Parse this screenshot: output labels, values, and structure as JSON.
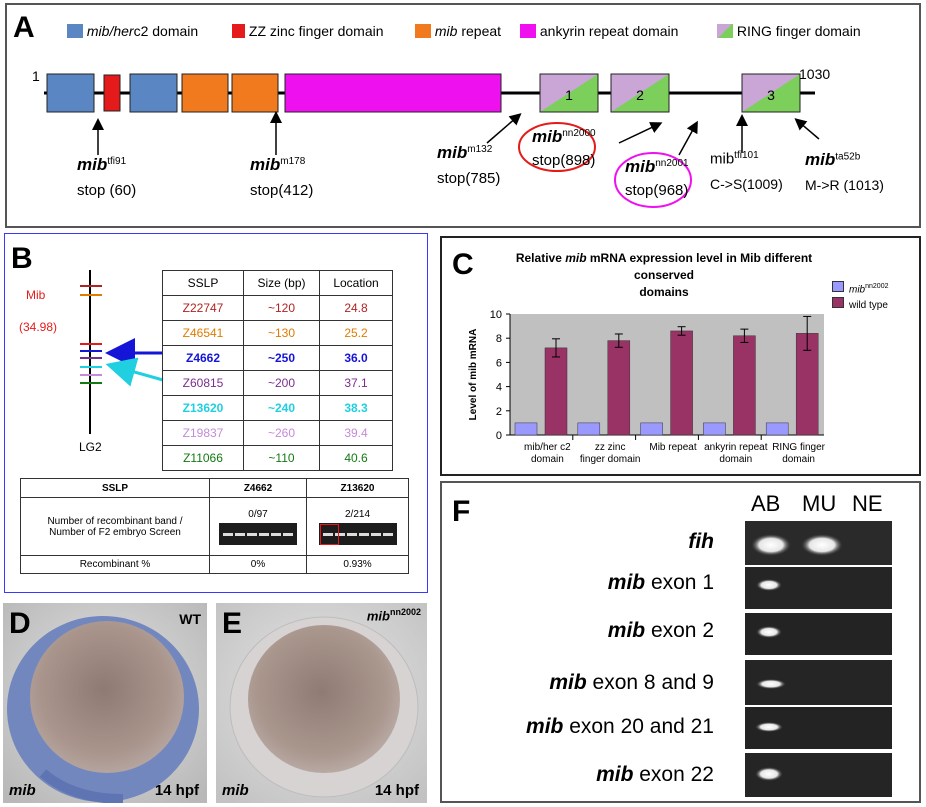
{
  "panel_a": {
    "letter": "A",
    "legend": [
      {
        "italic": "mib/her",
        "text": "c2 domain",
        "color": "#5b86c4"
      },
      {
        "italic": "",
        "text": "ZZ zinc finger domain",
        "color": "#e51b1b"
      },
      {
        "italic": "mib",
        "text": " repeat",
        "color": "#f07a1d"
      },
      {
        "italic": "",
        "text": "ankyrin repeat domain",
        "color": "#ee10ee"
      },
      {
        "italic": "",
        "text": "RING finger domain",
        "color": "#b999c6"
      }
    ],
    "start": "1",
    "end": "1030",
    "ring_numbers": [
      "1",
      "2",
      "3"
    ],
    "mutations": [
      {
        "base": "mib",
        "sup": "tfi91",
        "effect": "stop (60)"
      },
      {
        "base": "mib",
        "sup": "m178",
        "effect": "stop(412)"
      },
      {
        "base": "mib",
        "sup": "m132",
        "effect": "stop(785)"
      },
      {
        "base": "mib",
        "sup": "nn2000",
        "effect": "stop(898)"
      },
      {
        "base": "mib",
        "sup": "nn2001",
        "effect": "stop(968)"
      },
      {
        "base": "mib",
        "sup": "tfi101",
        "effect": "C->S(1009)"
      },
      {
        "base": "mib",
        "sup": "ta52b",
        "effect": "M->R (1013)"
      }
    ]
  },
  "panel_b": {
    "letter": "B",
    "mib_label": "Mib",
    "mib_pos": "(34.98)",
    "lg_label": "LG2",
    "sslp_table": {
      "headers": [
        "SSLP",
        "Size (bp)",
        "Location"
      ],
      "rows": [
        {
          "sslp": "Z22747",
          "size": "~120",
          "loc": "24.8",
          "color": "#b22222"
        },
        {
          "sslp": "Z46541",
          "size": "~130",
          "loc": "25.2",
          "color": "#e07b00"
        },
        {
          "sslp": "Z4662",
          "size": "~250",
          "loc": "36.0",
          "color": "#1515d8"
        },
        {
          "sslp": "Z60815",
          "size": "~200",
          "loc": "37.1",
          "color": "#7b2d8e"
        },
        {
          "sslp": "Z13620",
          "size": "~240",
          "loc": "38.3",
          "color": "#20d0e0"
        },
        {
          "sslp": "Z19837",
          "size": "~260",
          "loc": "39.4",
          "color": "#c58ad8"
        },
        {
          "sslp": "Z11066",
          "size": "~110",
          "loc": "40.6",
          "color": "#137a13"
        }
      ]
    },
    "recomb_table": {
      "headers": [
        "SSLP",
        "Z4662",
        "Z13620"
      ],
      "row1_label_a": "Number of recombinant band /",
      "row1_label_b": "Number of F2 embryo Screen",
      "row1_vals": [
        "0/97",
        "2/214"
      ],
      "row2_label": "Recombinant %",
      "row2_vals": [
        "0%",
        "0.93%"
      ]
    }
  },
  "panel_c": {
    "letter": "C",
    "title_a": "Relative ",
    "title_b": "mib",
    "title_c": " mRNA expression level in Mib different conserved",
    "title_d": "domains",
    "legend_mut_base": "mib",
    "legend_mut_sup": "nn2002",
    "legend_wt": "wild type"
  },
  "chart_data": {
    "type": "bar",
    "title": "Relative mib mRNA expression level in Mib different conserved domains",
    "ylabel": "Level of mib mRNA",
    "ylim": [
      0,
      10
    ],
    "yticks": [
      "0",
      "2",
      "4",
      "6",
      "8",
      "10"
    ],
    "categories": [
      [
        "mib/her c2",
        "domain"
      ],
      [
        "zz zinc",
        "finger domain"
      ],
      [
        "Mib repeat"
      ],
      [
        "ankyrin repeat",
        "domain"
      ],
      [
        "RING finger",
        "domain"
      ]
    ],
    "series": [
      {
        "name": "mibnn2002",
        "color": "#9999ff",
        "values": [
          1,
          1,
          1,
          1,
          1
        ],
        "errors": [
          0,
          0,
          0,
          0,
          0
        ]
      },
      {
        "name": "wild type",
        "color": "#993366",
        "values": [
          7.2,
          7.8,
          8.6,
          8.2,
          8.4
        ],
        "errors": [
          0.75,
          0.55,
          0.35,
          0.55,
          1.4
        ]
      }
    ],
    "grid": false,
    "legend": "top-right"
  },
  "panel_d": {
    "letter": "D",
    "corner": "WT",
    "gene": "mib",
    "stage": "14 hpf"
  },
  "panel_e": {
    "letter": "E",
    "corner_base": "mib",
    "corner_sup": "nn2002",
    "gene": "mib",
    "stage": "14 hpf"
  },
  "panel_f": {
    "letter": "F",
    "columns": [
      "AB",
      "MU",
      "NE"
    ],
    "rows": [
      {
        "italic": "fih",
        "text": ""
      },
      {
        "italic": "mib",
        "text": " exon 1"
      },
      {
        "italic": "mib",
        "text": " exon 2"
      },
      {
        "italic": "mib",
        "text": " exon 8 and 9"
      },
      {
        "italic": "mib",
        "text": " exon 20 and 21"
      },
      {
        "italic": "mib",
        "text": " exon 22"
      }
    ]
  }
}
